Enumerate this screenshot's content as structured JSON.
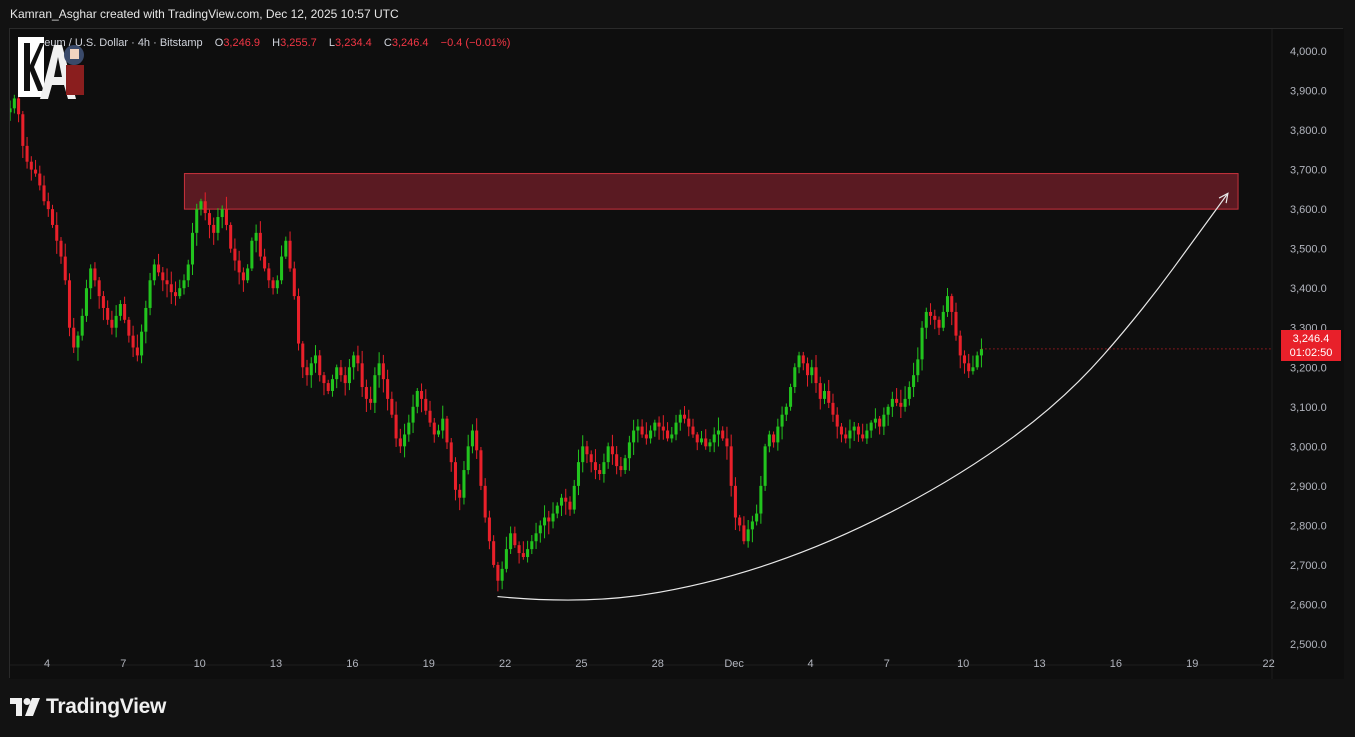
{
  "header": {
    "credit": "Kamran_Asghar created with TradingView.com, Dec 12, 2025 10:57 UTC"
  },
  "legend": {
    "symbol": "Ethereum / U.S. Dollar · 4h · Bitstamp",
    "o_label": "O",
    "o_value": "3,246.9",
    "h_label": "H",
    "h_value": "3,255.7",
    "l_label": "L",
    "l_value": "3,234.4",
    "c_label": "C",
    "c_value": "3,246.4",
    "change": "−0.4 (−0.01%)"
  },
  "price_tag": {
    "price": "3,246.4",
    "countdown": "01:02:50"
  },
  "footer": {
    "brand": "TradingView"
  },
  "colors": {
    "up": "#22c41e",
    "down": "#e8202a",
    "zone_fill": "#5a1a22",
    "zone_border": "#c8323c",
    "background": "#0e0e0e"
  },
  "chart_data": {
    "type": "candlestick",
    "ylim": [
      2450,
      4050
    ],
    "y_ticks": [
      "4,000.0",
      "3,900.0",
      "3,800.0",
      "3,700.0",
      "3,600.0",
      "3,500.0",
      "3,400.0",
      "3,300.0",
      "3,200.0",
      "3,100.0",
      "3,000.0",
      "2,900.0",
      "2,800.0",
      "2,700.0",
      "2,600.0",
      "2,500.0"
    ],
    "y_tick_values": [
      4000,
      3900,
      3800,
      3700,
      3600,
      3500,
      3400,
      3300,
      3200,
      3100,
      3000,
      2900,
      2800,
      2700,
      2600,
      2500
    ],
    "x_ticks": [
      "4",
      "7",
      "10",
      "13",
      "16",
      "19",
      "22",
      "25",
      "28",
      "Dec",
      "4",
      "7",
      "10",
      "13",
      "16",
      "19",
      "22"
    ],
    "x_tick_day_index": [
      4,
      7,
      10,
      13,
      16,
      19,
      22,
      25,
      28,
      31,
      34,
      37,
      40,
      43,
      46,
      49,
      52
    ],
    "x_start_day_index": 2.5,
    "x_end_day_index": 53.5,
    "resistance_zone": {
      "day_start": 9.4,
      "day_end": 50.8,
      "price_low": 3600,
      "price_high": 3690
    },
    "curve": {
      "points_day_price": [
        [
          21.7,
          2620
        ],
        [
          25,
          2600
        ],
        [
          30,
          2650
        ],
        [
          35,
          2760
        ],
        [
          40,
          2930
        ],
        [
          44,
          3120
        ],
        [
          47,
          3340
        ],
        [
          49.5,
          3560
        ],
        [
          50.4,
          3640
        ]
      ]
    },
    "last_price": 3246.4,
    "candles_per_day": 6,
    "first_candle_day_index": 2.55,
    "closes": [
      3855,
      3880,
      3840,
      3760,
      3720,
      3700,
      3690,
      3660,
      3620,
      3600,
      3560,
      3520,
      3480,
      3420,
      3300,
      3250,
      3280,
      3330,
      3400,
      3450,
      3420,
      3380,
      3350,
      3320,
      3300,
      3330,
      3360,
      3320,
      3280,
      3250,
      3230,
      3290,
      3350,
      3420,
      3460,
      3440,
      3420,
      3410,
      3390,
      3380,
      3400,
      3420,
      3460,
      3540,
      3600,
      3620,
      3590,
      3560,
      3540,
      3580,
      3600,
      3560,
      3500,
      3470,
      3440,
      3420,
      3450,
      3520,
      3540,
      3480,
      3450,
      3420,
      3400,
      3420,
      3480,
      3520,
      3450,
      3380,
      3260,
      3200,
      3180,
      3210,
      3230,
      3180,
      3160,
      3140,
      3170,
      3200,
      3180,
      3160,
      3200,
      3230,
      3210,
      3150,
      3120,
      3110,
      3180,
      3210,
      3170,
      3120,
      3080,
      3020,
      3000,
      3030,
      3060,
      3100,
      3140,
      3120,
      3090,
      3060,
      3030,
      3040,
      3070,
      3010,
      2960,
      2890,
      2870,
      2940,
      3000,
      3040,
      2990,
      2900,
      2820,
      2760,
      2700,
      2660,
      2690,
      2740,
      2780,
      2750,
      2730,
      2720,
      2740,
      2760,
      2780,
      2800,
      2820,
      2810,
      2830,
      2850,
      2870,
      2860,
      2840,
      2900,
      2960,
      3000,
      2980,
      2960,
      2940,
      2930,
      2960,
      3000,
      2980,
      2950,
      2940,
      2970,
      3010,
      3040,
      3050,
      3030,
      3020,
      3040,
      3060,
      3050,
      3040,
      3020,
      3030,
      3060,
      3080,
      3070,
      3050,
      3030,
      3010,
      3020,
      3000,
      3010,
      3030,
      3040,
      3020,
      3000,
      2900,
      2820,
      2800,
      2760,
      2790,
      2810,
      2830,
      2900,
      3000,
      3030,
      3010,
      3050,
      3080,
      3100,
      3150,
      3200,
      3230,
      3210,
      3180,
      3200,
      3160,
      3120,
      3140,
      3110,
      3080,
      3050,
      3030,
      3020,
      3040,
      3050,
      3030,
      3020,
      3040,
      3060,
      3070,
      3050,
      3080,
      3100,
      3120,
      3110,
      3100,
      3120,
      3150,
      3180,
      3220,
      3300,
      3340,
      3330,
      3320,
      3300,
      3340,
      3380,
      3340,
      3280,
      3230,
      3210,
      3190,
      3200,
      3230,
      3246
    ]
  }
}
